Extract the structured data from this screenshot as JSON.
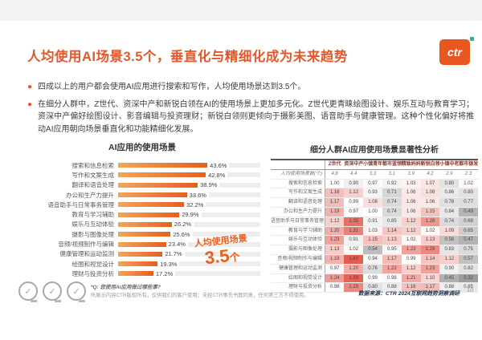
{
  "header": {
    "title": "人均使用AI场景3.5个，垂直化与精细化成为未来趋势",
    "logo_text": "ctr"
  },
  "bullets": [
    "四成以上的用户都会使用AI应用进行搜索和写作，人均使用场景达到3.5个。",
    "在细分人群中，Z世代、资深中产和新锐白领在AI的使用场景上更加多元化。Z世代更青睐绘图设计、娱乐互动与教育学习；资深中产偏好绘图设计、影音编辑与投资理财；新锐白领则更倾向于摄影美图、语音助手与健康管理。这种个性化偏好将推动AI应用朝向场景垂直化和功能精细化发展。"
  ],
  "chart_data": [
    {
      "type": "bar",
      "orientation": "horizontal",
      "title": "AI应用的使用场景",
      "unit": "%",
      "xlim": [
        0,
        50
      ],
      "categories": [
        "搜索和信息检索",
        "写作和文案生成",
        "翻译和语音处理",
        "办公和生产力提升",
        "语音助手与日常事务管理",
        "教育与学习辅助",
        "娱乐与互动体验",
        "摄影与图像处理",
        "音频/视频制作与编辑",
        "健康管理和运动监测",
        "绘图和视觉设计",
        "理财与投资分析"
      ],
      "values": [
        43.6,
        42.8,
        38.9,
        33.6,
        32.2,
        29.9,
        26.2,
        25.6,
        23.4,
        21.7,
        19.3,
        17.2
      ],
      "annotation_label": "人均使用场景",
      "annotation_number": "3.5",
      "annotation_unit": "个"
    },
    {
      "type": "heatmap",
      "title": "细分人群AI应用使用场景显著性分析",
      "columns": [
        "Z世代",
        "资深中产",
        "小镇青年",
        "都市蓝领",
        "精致妈妈",
        "新锐白领",
        "小镇中老年",
        "都市银发"
      ],
      "avg_row": {
        "label": "人均使用场景数(个)",
        "values": [
          "4.8",
          "4.4",
          "3.3",
          "3.1",
          "3.9",
          "4.2",
          "2.9",
          "2.3"
        ]
      },
      "rows": [
        {
          "label": "搜索和信息检索",
          "values": [
            1.0,
            0.9,
            0.97,
            0.92,
            1.03,
            1.07,
            0.8,
            1.02
          ]
        },
        {
          "label": "写作和文案生成",
          "values": [
            1.16,
            1.12,
            0.93,
            0.71,
            1.06,
            1.08,
            0.86,
            0.8
          ]
        },
        {
          "label": "翻译和语音处理",
          "values": [
            1.17,
            0.99,
            1.08,
            0.74,
            1.06,
            1.06,
            0.78,
            0.77
          ]
        },
        {
          "label": "办公和生产力提升",
          "values": [
            1.19,
            0.97,
            1.0,
            0.74,
            1.06,
            1.15,
            0.84,
            0.49
          ]
        },
        {
          "label": "语音助手与日常事务管理",
          "values": [
            1.12,
            1.35,
            0.91,
            0.85,
            1.12,
            1.26,
            0.74,
            0.68
          ]
        },
        {
          "label": "教育与学习辅助",
          "values": [
            1.2,
            1.31,
            1.03,
            1.14,
            1.12,
            1.02,
            1.09,
            0.65
          ]
        },
        {
          "label": "娱乐与互动体验",
          "values": [
            1.23,
            0.91,
            1.15,
            1.13,
            1.02,
            1.13,
            0.58,
            0.47
          ]
        },
        {
          "label": "摄影与图像处理",
          "values": [
            1.13,
            1.02,
            0.54,
            0.95,
            1.23,
            1.29,
            0.83,
            0.75
          ]
        },
        {
          "label": "音频/视频制作与编辑",
          "values": [
            1.19,
            1.4,
            0.94,
            1.17,
            0.99,
            1.14,
            1.12,
            0.57
          ]
        },
        {
          "label": "健康管理和运动监测",
          "values": [
            0.97,
            1.2,
            0.76,
            1.22,
            1.12,
            1.23,
            0.9,
            0.82
          ]
        },
        {
          "label": "绘图和视觉设计",
          "values": [
            1.24,
            1.39,
            0.99,
            0.98,
            1.21,
            1.1,
            0.45,
            0.32
          ]
        },
        {
          "label": "理财与投资分析",
          "values": [
            0.98,
            1.29,
            0.8,
            0.88,
            1.16,
            1.17,
            0.88,
            0.85
          ]
        }
      ]
    }
  ],
  "footer": {
    "question": "*Q: 您使用AI应用做过哪些事?",
    "disclaimer": "所展示内容CTR版权所有，仅供我们的客户使用；未经CTR事先书面同意，任何第三方不得使用。",
    "source": "数据来源：CTR 2024互联网趋势洞察调研",
    "page": "10"
  },
  "colors": {
    "accent_orange": "#E4582A",
    "bar_gradient_start": "#F2A55C",
    "bar_gradient_end": "#E55F1D",
    "heat_red": "#DF4638",
    "heat_gray": "#8C8C8C",
    "source_navy": "#24364D"
  }
}
